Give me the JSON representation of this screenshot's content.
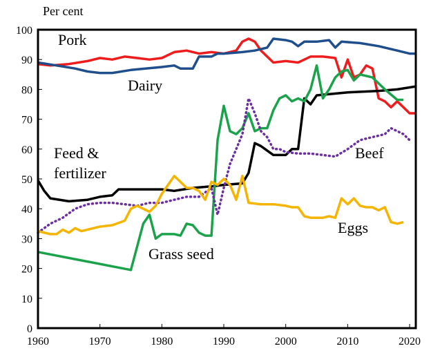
{
  "chart_data": {
    "type": "line",
    "title": "",
    "ylabel": "Per cent",
    "xlabel": "",
    "xlim": [
      1960,
      2021
    ],
    "ylim": [
      0,
      100
    ],
    "x_ticks": [
      1960,
      1970,
      1980,
      1990,
      2000,
      2010,
      2020
    ],
    "y_ticks": [
      0,
      10,
      20,
      30,
      40,
      50,
      60,
      70,
      80,
      90,
      100
    ],
    "series": [
      {
        "name": "Pork",
        "color": "#ee1c1c",
        "dash": "solid",
        "points": [
          [
            1960,
            88.5
          ],
          [
            1962,
            88
          ],
          [
            1965,
            88.5
          ],
          [
            1968,
            89.5
          ],
          [
            1970,
            90.5
          ],
          [
            1972,
            90
          ],
          [
            1974,
            91
          ],
          [
            1976,
            90.5
          ],
          [
            1978,
            90
          ],
          [
            1980,
            90.5
          ],
          [
            1982,
            92.5
          ],
          [
            1984,
            93
          ],
          [
            1986,
            92
          ],
          [
            1988,
            92.5
          ],
          [
            1990,
            92
          ],
          [
            1992,
            93
          ],
          [
            1993,
            96
          ],
          [
            1994,
            97
          ],
          [
            1995,
            96
          ],
          [
            1996,
            93
          ],
          [
            1998,
            89
          ],
          [
            2000,
            89.5
          ],
          [
            2002,
            89
          ],
          [
            2004,
            91
          ],
          [
            2006,
            91
          ],
          [
            2008,
            90.5
          ],
          [
            2009,
            84
          ],
          [
            2010,
            90
          ],
          [
            2011,
            84
          ],
          [
            2012,
            85
          ],
          [
            2013,
            88
          ],
          [
            2014,
            87
          ],
          [
            2015,
            77
          ],
          [
            2016,
            76
          ],
          [
            2017,
            74
          ],
          [
            2018,
            76
          ],
          [
            2019,
            74
          ],
          [
            2020,
            72
          ],
          [
            2021,
            72
          ]
        ]
      },
      {
        "name": "Dairy",
        "color": "#1f4e8c",
        "dash": "solid",
        "points": [
          [
            1960,
            89
          ],
          [
            1963,
            88
          ],
          [
            1966,
            87
          ],
          [
            1968,
            86
          ],
          [
            1970,
            85.5
          ],
          [
            1972,
            85.5
          ],
          [
            1975,
            86.5
          ],
          [
            1980,
            87.5
          ],
          [
            1982,
            88
          ],
          [
            1983,
            87
          ],
          [
            1985,
            87
          ],
          [
            1986,
            91
          ],
          [
            1988,
            91
          ],
          [
            1989,
            92
          ],
          [
            1990,
            92
          ],
          [
            1993,
            92.5
          ],
          [
            1995,
            93
          ],
          [
            1997,
            94
          ],
          [
            1998,
            97
          ],
          [
            2000,
            96.5
          ],
          [
            2001,
            96
          ],
          [
            2002,
            94.5
          ],
          [
            2003,
            96
          ],
          [
            2005,
            96
          ],
          [
            2007,
            96.5
          ],
          [
            2008,
            94
          ],
          [
            2009,
            96
          ],
          [
            2012,
            95.5
          ],
          [
            2015,
            94.5
          ],
          [
            2018,
            93
          ],
          [
            2020,
            92
          ],
          [
            2021,
            92
          ]
        ]
      },
      {
        "name": "Feed & fertilizer",
        "color": "#000000",
        "dash": "solid",
        "points": [
          [
            1960,
            49.5
          ],
          [
            1961,
            46
          ],
          [
            1962,
            43.5
          ],
          [
            1965,
            42.5
          ],
          [
            1968,
            43
          ],
          [
            1970,
            44
          ],
          [
            1972,
            44.5
          ],
          [
            1973,
            46.5
          ],
          [
            1975,
            46.5
          ],
          [
            1980,
            46.5
          ],
          [
            1982,
            46
          ],
          [
            1985,
            47
          ],
          [
            1988,
            47.5
          ],
          [
            1990,
            48
          ],
          [
            1993,
            48.5
          ],
          [
            1994,
            52
          ],
          [
            1995,
            62
          ],
          [
            1996,
            61
          ],
          [
            1998,
            58
          ],
          [
            2000,
            58
          ],
          [
            2001,
            60
          ],
          [
            2002,
            60
          ],
          [
            2003,
            77
          ],
          [
            2004,
            75
          ],
          [
            2005,
            78
          ],
          [
            2010,
            79
          ],
          [
            2015,
            79.5
          ],
          [
            2018,
            80
          ],
          [
            2021,
            81
          ]
        ]
      },
      {
        "name": "Grass seed",
        "color": "#1aa34a",
        "dash": "solid",
        "points": [
          [
            1960,
            25.5
          ],
          [
            1975,
            19.5
          ],
          [
            1977,
            35
          ],
          [
            1978,
            38
          ],
          [
            1979,
            30
          ],
          [
            1980,
            31.5
          ],
          [
            1982,
            31.5
          ],
          [
            1983,
            31
          ],
          [
            1984,
            35
          ],
          [
            1985,
            34.5
          ],
          [
            1986,
            32
          ],
          [
            1987,
            31
          ],
          [
            1988,
            31
          ],
          [
            1989,
            63
          ],
          [
            1990,
            74.5
          ],
          [
            1991,
            66
          ],
          [
            1992,
            65
          ],
          [
            1993,
            67
          ],
          [
            1994,
            72
          ],
          [
            1995,
            66
          ],
          [
            1996,
            67
          ],
          [
            1997,
            67
          ],
          [
            1998,
            73
          ],
          [
            1999,
            77
          ],
          [
            2000,
            78
          ],
          [
            2001,
            76
          ],
          [
            2002,
            77
          ],
          [
            2003,
            76
          ],
          [
            2004,
            80
          ],
          [
            2005,
            88
          ],
          [
            2006,
            77
          ],
          [
            2007,
            80
          ],
          [
            2008,
            84
          ],
          [
            2009,
            86
          ],
          [
            2010,
            86.5
          ],
          [
            2011,
            83
          ],
          [
            2012,
            85
          ],
          [
            2014,
            84
          ],
          [
            2016,
            80
          ],
          [
            2018,
            76.5
          ],
          [
            2019,
            76.5
          ]
        ]
      },
      {
        "name": "Beef",
        "color": "#6a2fa0",
        "dash": "dotted",
        "points": [
          [
            1960,
            32
          ],
          [
            1962,
            35
          ],
          [
            1964,
            37
          ],
          [
            1966,
            40
          ],
          [
            1968,
            41.5
          ],
          [
            1970,
            42
          ],
          [
            1972,
            42
          ],
          [
            1974,
            41.5
          ],
          [
            1976,
            41
          ],
          [
            1978,
            42
          ],
          [
            1980,
            42
          ],
          [
            1982,
            43
          ],
          [
            1984,
            44
          ],
          [
            1986,
            44
          ],
          [
            1988,
            47
          ],
          [
            1989,
            38
          ],
          [
            1990,
            47
          ],
          [
            1991,
            55
          ],
          [
            1992,
            60
          ],
          [
            1993,
            65
          ],
          [
            1994,
            77
          ],
          [
            1995,
            72
          ],
          [
            1996,
            66
          ],
          [
            1997,
            64
          ],
          [
            1998,
            60
          ],
          [
            1999,
            60
          ],
          [
            2000,
            59
          ],
          [
            2002,
            58.5
          ],
          [
            2004,
            58.5
          ],
          [
            2006,
            58
          ],
          [
            2008,
            57.5
          ],
          [
            2010,
            60
          ],
          [
            2012,
            63
          ],
          [
            2014,
            64
          ],
          [
            2016,
            65
          ],
          [
            2017,
            67
          ],
          [
            2018,
            66
          ],
          [
            2019,
            65
          ],
          [
            2020,
            63
          ]
        ]
      },
      {
        "name": "Eggs",
        "color": "#f5b400",
        "dash": "solid",
        "points": [
          [
            1960,
            32.5
          ],
          [
            1962,
            31.5
          ],
          [
            1963,
            31.5
          ],
          [
            1964,
            33
          ],
          [
            1965,
            32
          ],
          [
            1966,
            33.5
          ],
          [
            1967,
            32.5
          ],
          [
            1968,
            33
          ],
          [
            1970,
            34
          ],
          [
            1972,
            34.5
          ],
          [
            1974,
            36
          ],
          [
            1975,
            40
          ],
          [
            1976,
            41
          ],
          [
            1977,
            40
          ],
          [
            1978,
            39
          ],
          [
            1979,
            41
          ],
          [
            1980,
            45
          ],
          [
            1981,
            48
          ],
          [
            1982,
            51
          ],
          [
            1983,
            49
          ],
          [
            1984,
            47
          ],
          [
            1985,
            47
          ],
          [
            1986,
            46
          ],
          [
            1987,
            43
          ],
          [
            1988,
            49
          ],
          [
            1989,
            48
          ],
          [
            1990,
            50
          ],
          [
            1991,
            48
          ],
          [
            1992,
            43
          ],
          [
            1993,
            51
          ],
          [
            1994,
            42
          ],
          [
            1996,
            41.5
          ],
          [
            1998,
            41.5
          ],
          [
            2000,
            41
          ],
          [
            2001,
            40.5
          ],
          [
            2002,
            40.5
          ],
          [
            2003,
            37.5
          ],
          [
            2004,
            37
          ],
          [
            2005,
            37
          ],
          [
            2006,
            37
          ],
          [
            2007,
            37.5
          ],
          [
            2008,
            37
          ],
          [
            2009,
            43.5
          ],
          [
            2010,
            41.5
          ],
          [
            2011,
            43.5
          ],
          [
            2012,
            41
          ],
          [
            2013,
            40.5
          ],
          [
            2014,
            40.5
          ],
          [
            2015,
            39.5
          ],
          [
            2016,
            40.5
          ],
          [
            2017,
            35.5
          ],
          [
            2018,
            35
          ],
          [
            2019,
            35.5
          ]
        ]
      }
    ],
    "annotations": [
      {
        "text": "Pork",
        "series": "Pork"
      },
      {
        "text": "Dairy",
        "series": "Dairy"
      },
      {
        "text": "Feed &",
        "series": "Feed & fertilizer"
      },
      {
        "text": "fertilizer",
        "series": "Feed & fertilizer"
      },
      {
        "text": "Beef",
        "series": "Beef"
      },
      {
        "text": "Eggs",
        "series": "Eggs"
      },
      {
        "text": "Grass seed",
        "series": "Grass seed"
      }
    ]
  }
}
